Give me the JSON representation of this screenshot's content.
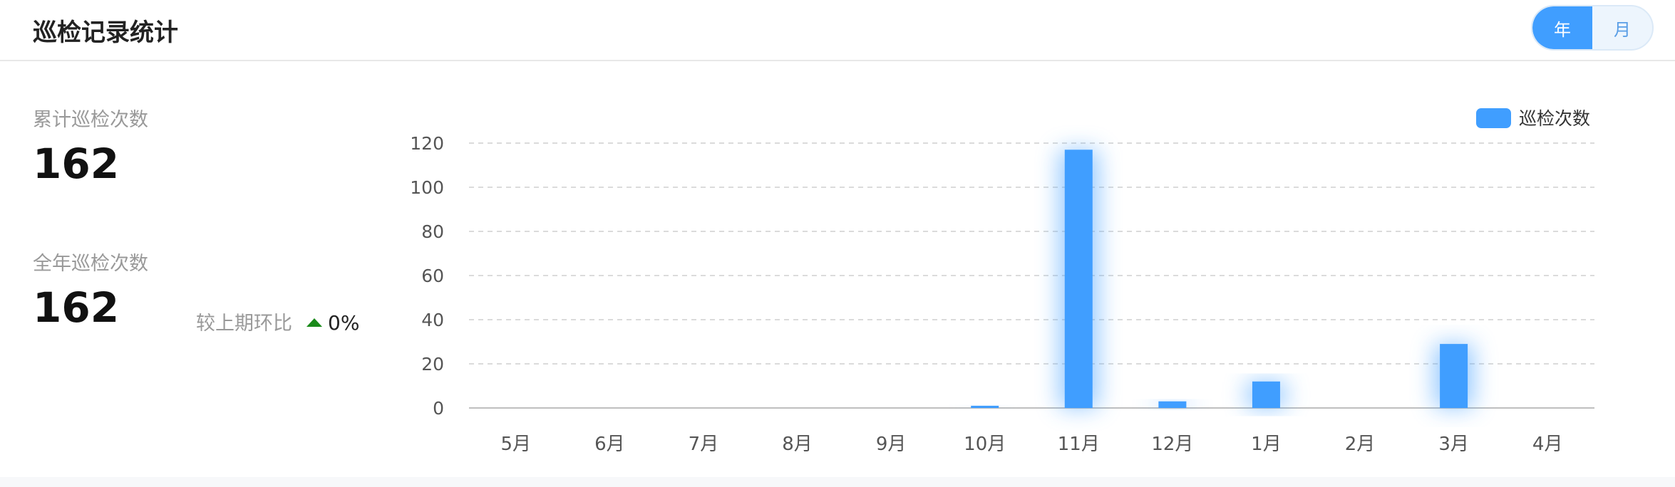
{
  "header": {
    "title": "巡检记录统计",
    "toggle": {
      "year_label": "年",
      "month_label": "月",
      "selected": "年"
    }
  },
  "stats": {
    "total_label": "累计巡检次数",
    "total_value": "162",
    "year_label": "全年巡检次数",
    "year_value": "162",
    "compare_label": "较上期环比",
    "compare_value": "0%",
    "compare_trend_icon": "triangle-up-icon"
  },
  "colors": {
    "accent": "#409eff",
    "trend_up": "#1a8a1a"
  },
  "chart_data": {
    "type": "bar",
    "categories": [
      "5月",
      "6月",
      "7月",
      "8月",
      "9月",
      "10月",
      "11月",
      "12月",
      "1月",
      "2月",
      "3月",
      "4月"
    ],
    "series": [
      {
        "name": "巡检次数",
        "values": [
          0,
          0,
          0,
          0,
          0,
          1,
          117,
          3,
          12,
          0,
          29,
          0
        ]
      }
    ],
    "yticks": [
      0,
      20,
      40,
      60,
      80,
      100,
      120
    ],
    "ylim": [
      0,
      120
    ],
    "grid": true,
    "legend_position": "top-right"
  }
}
